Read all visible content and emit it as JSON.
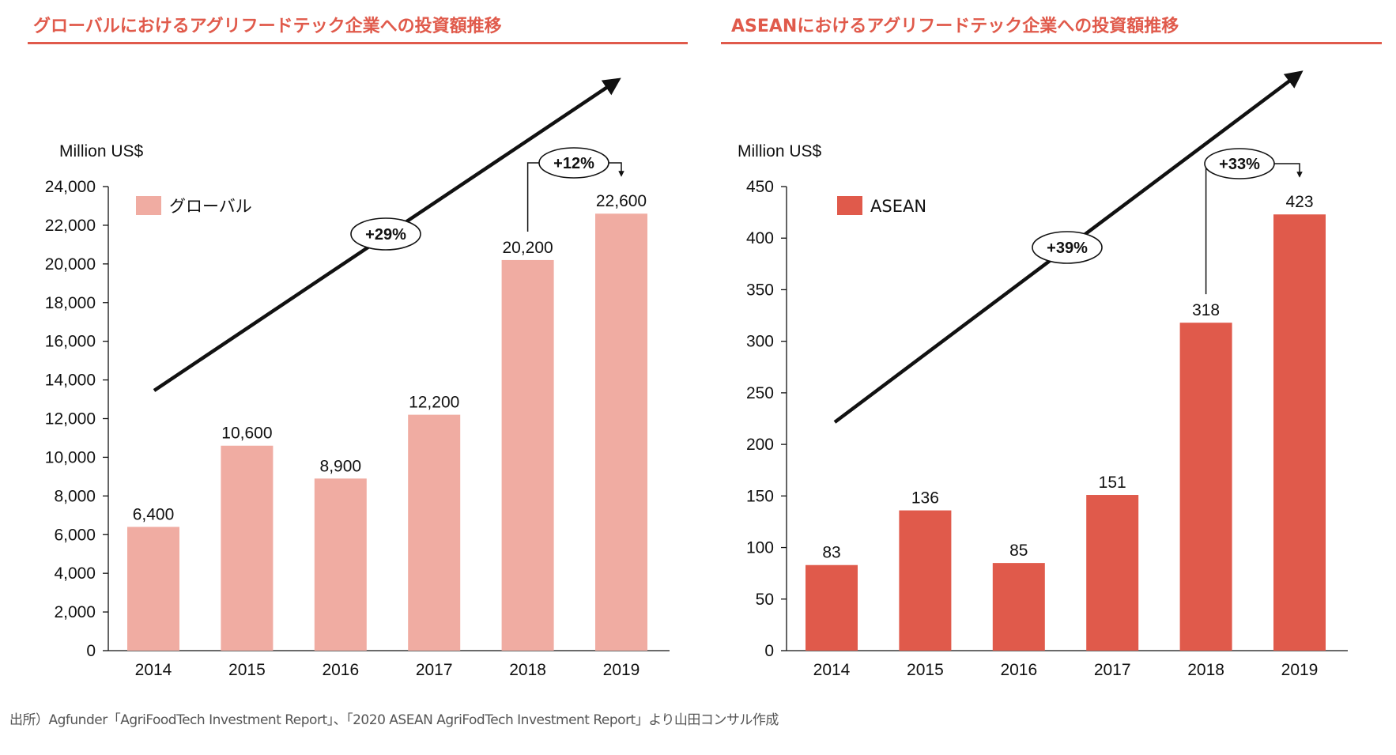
{
  "charts": [
    {
      "title": "グローバルにおけるアグリフードテック企業への投資額推移",
      "chart_data": {
        "type": "bar",
        "title": "グローバルにおけるアグリフードテック企業への投資額推移",
        "ylabel": "Million US$",
        "categories": [
          "2014",
          "2015",
          "2016",
          "2017",
          "2018",
          "2019"
        ],
        "series": [
          {
            "name": "グローバル",
            "values": [
              6400,
              10600,
              8900,
              12200,
              20200,
              22600
            ],
            "color": "#f0aca2"
          }
        ],
        "value_labels": [
          "6,400",
          "10,600",
          "8,900",
          "12,200",
          "20,200",
          "22,600"
        ],
        "ylim": [
          0,
          24000
        ],
        "yticks": [
          0,
          2000,
          4000,
          6000,
          8000,
          10000,
          12000,
          14000,
          16000,
          18000,
          20000,
          22000,
          24000
        ],
        "ytick_labels": [
          "0",
          "2,000",
          "4,000",
          "6,000",
          "8,000",
          "10,000",
          "12,000",
          "14,000",
          "16,000",
          "18,000",
          "20,000",
          "22,000",
          "24,000"
        ],
        "legend": {
          "label": "グローバル",
          "position": "top-left"
        },
        "annotations": {
          "cagr": "+29%",
          "yoy": "+12%"
        },
        "grid": false
      }
    },
    {
      "title": "ASEANにおけるアグリフードテック企業への投資額推移",
      "chart_data": {
        "type": "bar",
        "title": "ASEANにおけるアグリフードテック企業への投資額推移",
        "ylabel": "Million US$",
        "categories": [
          "2014",
          "2015",
          "2016",
          "2017",
          "2018",
          "2019"
        ],
        "series": [
          {
            "name": "ASEAN",
            "values": [
              83,
              136,
              85,
              151,
              318,
              423
            ],
            "color": "#e05a4b"
          }
        ],
        "value_labels": [
          "83",
          "136",
          "85",
          "151",
          "318",
          "423"
        ],
        "ylim": [
          0,
          450
        ],
        "yticks": [
          0,
          50,
          100,
          150,
          200,
          250,
          300,
          350,
          400,
          450
        ],
        "ytick_labels": [
          "0",
          "50",
          "100",
          "150",
          "200",
          "250",
          "300",
          "350",
          "400",
          "450"
        ],
        "legend": {
          "label": "ASEAN",
          "position": "top-left"
        },
        "annotations": {
          "cagr": "+39%",
          "yoy": "+33%"
        },
        "grid": false
      }
    }
  ],
  "source": "出所）Agfunder「AgriFoodTech Investment Report」、「2020 ASEAN AgriFodTech Investment Report」より山田コンサル作成",
  "colors": {
    "title": "#e05a4b",
    "global_bar": "#f0aca2",
    "asean_bar": "#e05a4b"
  }
}
